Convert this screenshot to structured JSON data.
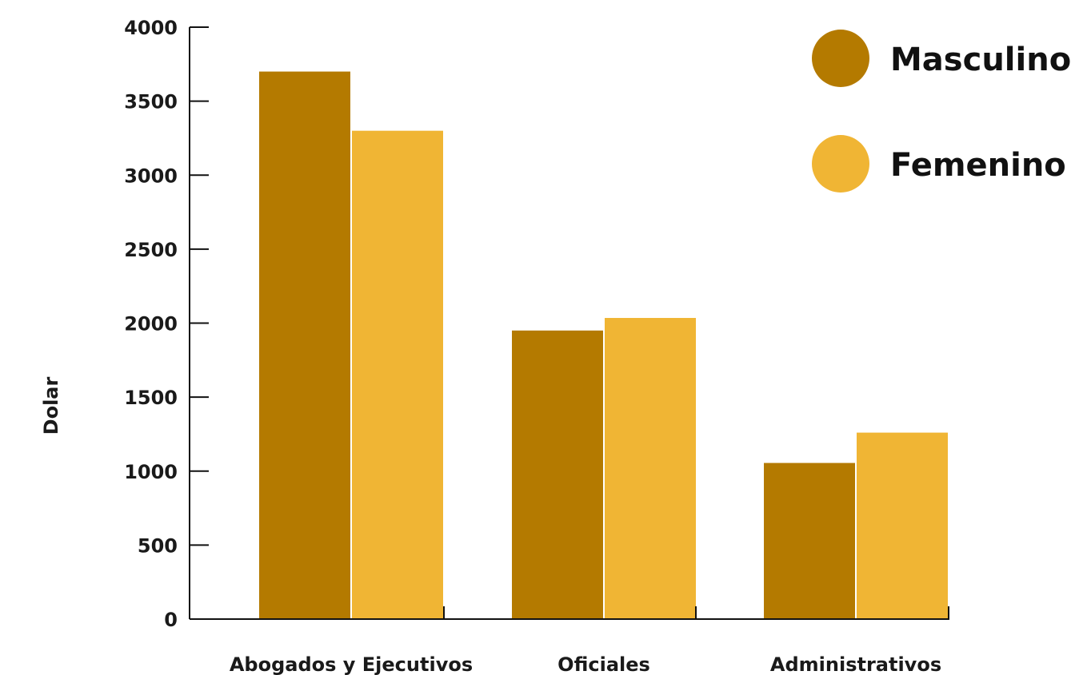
{
  "chart_data": {
    "type": "bar",
    "title": "",
    "xlabel": "",
    "ylabel": "Dolar",
    "categories": [
      "Abogados y Ejecutivos",
      "Oficiales",
      "Administrativos"
    ],
    "series": [
      {
        "name": "Masculino",
        "values": [
          3700,
          1950,
          1055
        ],
        "color": "#b47a00"
      },
      {
        "name": "Femenino",
        "values": [
          3300,
          2035,
          1260
        ],
        "color": "#f0b534"
      }
    ],
    "ylim": [
      0,
      4000
    ],
    "yticks": [
      0,
      500,
      1000,
      1500,
      2000,
      2500,
      3000,
      3500,
      4000
    ],
    "grid": false,
    "legend_position": "top-right"
  }
}
